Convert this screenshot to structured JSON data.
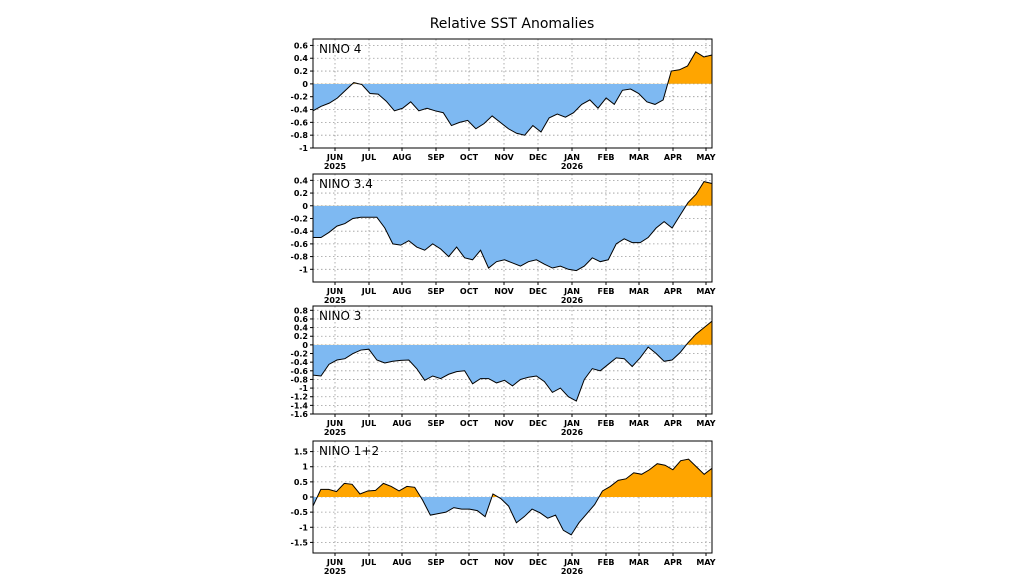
{
  "title": "Relative SST Anomalies",
  "colors": {
    "positive": "#FFA500",
    "negative": "#7EB9F2",
    "line": "#000000",
    "grid": "#9a9a9a"
  },
  "chart_data": [
    {
      "type": "area",
      "label": "NINO 4",
      "ylim": [
        -1,
        0.7
      ],
      "yticks": [
        0.6,
        0.4,
        0.2,
        0,
        -0.2,
        -0.4,
        -0.6,
        -0.8,
        -1
      ],
      "xticks": [
        "JUN",
        "JUL",
        "AUG",
        "SEP",
        "OCT",
        "NOV",
        "DEC",
        "JAN",
        "FEB",
        "MAR",
        "APR",
        "MAY"
      ],
      "year_labels": [
        "2025",
        "2026"
      ],
      "values": [
        -0.42,
        -0.35,
        -0.3,
        -0.22,
        -0.1,
        0.02,
        -0.01,
        -0.15,
        -0.16,
        -0.27,
        -0.42,
        -0.38,
        -0.28,
        -0.42,
        -0.38,
        -0.42,
        -0.45,
        -0.65,
        -0.6,
        -0.57,
        -0.7,
        -0.62,
        -0.5,
        -0.6,
        -0.7,
        -0.77,
        -0.8,
        -0.65,
        -0.75,
        -0.53,
        -0.47,
        -0.52,
        -0.45,
        -0.32,
        -0.25,
        -0.38,
        -0.22,
        -0.32,
        -0.1,
        -0.08,
        -0.15,
        -0.28,
        -0.32,
        -0.25,
        0.2,
        0.22,
        0.28,
        0.5,
        0.42,
        0.45
      ]
    },
    {
      "type": "area",
      "label": "NINO 3.4",
      "ylim": [
        -1.2,
        0.5
      ],
      "yticks": [
        0.4,
        0.2,
        0,
        -0.2,
        -0.4,
        -0.6,
        -0.8,
        -1
      ],
      "xticks": [
        "JUN",
        "JUL",
        "AUG",
        "SEP",
        "OCT",
        "NOV",
        "DEC",
        "JAN",
        "FEB",
        "MAR",
        "APR",
        "MAY"
      ],
      "year_labels": [
        "2025",
        "2026"
      ],
      "values": [
        -0.5,
        -0.5,
        -0.42,
        -0.32,
        -0.28,
        -0.2,
        -0.18,
        -0.18,
        -0.18,
        -0.35,
        -0.6,
        -0.62,
        -0.55,
        -0.65,
        -0.7,
        -0.6,
        -0.68,
        -0.8,
        -0.65,
        -0.82,
        -0.85,
        -0.7,
        -0.98,
        -0.88,
        -0.85,
        -0.9,
        -0.95,
        -0.88,
        -0.85,
        -0.92,
        -0.98,
        -0.95,
        -1.0,
        -1.02,
        -0.95,
        -0.82,
        -0.88,
        -0.85,
        -0.6,
        -0.52,
        -0.58,
        -0.58,
        -0.5,
        -0.35,
        -0.25,
        -0.35,
        -0.15,
        0.05,
        0.18,
        0.38,
        0.35
      ]
    },
    {
      "type": "area",
      "label": "NINO 3",
      "ylim": [
        -1.6,
        0.9
      ],
      "yticks": [
        0.8,
        0.6,
        0.4,
        0.2,
        0,
        -0.2,
        -0.4,
        -0.6,
        -0.8,
        -1,
        -1.2,
        -1.4,
        -1.6
      ],
      "xticks": [
        "JUN",
        "JUL",
        "AUG",
        "SEP",
        "OCT",
        "NOV",
        "DEC",
        "JAN",
        "FEB",
        "MAR",
        "APR",
        "MAY"
      ],
      "year_labels": [
        "2025",
        "2026"
      ],
      "values": [
        -0.7,
        -0.72,
        -0.45,
        -0.35,
        -0.32,
        -0.2,
        -0.12,
        -0.1,
        -0.35,
        -0.42,
        -0.38,
        -0.36,
        -0.35,
        -0.55,
        -0.82,
        -0.72,
        -0.78,
        -0.68,
        -0.62,
        -0.6,
        -0.9,
        -0.78,
        -0.78,
        -0.88,
        -0.82,
        -0.95,
        -0.8,
        -0.75,
        -0.72,
        -0.85,
        -1.1,
        -1.0,
        -1.2,
        -1.3,
        -0.8,
        -0.55,
        -0.6,
        -0.45,
        -0.3,
        -0.32,
        -0.5,
        -0.3,
        -0.05,
        -0.2,
        -0.38,
        -0.35,
        -0.18,
        0.05,
        0.25,
        0.4,
        0.55
      ]
    },
    {
      "type": "area",
      "label": "NINO 1+2",
      "ylim": [
        -1.85,
        1.85
      ],
      "yticks": [
        1.5,
        1,
        0.5,
        0,
        -0.5,
        -1,
        -1.5
      ],
      "xticks": [
        "JUN",
        "JUL",
        "AUG",
        "SEP",
        "OCT",
        "NOV",
        "DEC",
        "JAN",
        "FEB",
        "MAR",
        "APR",
        "MAY"
      ],
      "year_labels": [
        "2025",
        "2026"
      ],
      "values": [
        -0.3,
        0.25,
        0.25,
        0.18,
        0.45,
        0.42,
        0.1,
        0.2,
        0.22,
        0.45,
        0.35,
        0.2,
        0.35,
        0.32,
        -0.1,
        -0.6,
        -0.55,
        -0.5,
        -0.35,
        -0.4,
        -0.4,
        -0.45,
        -0.65,
        0.1,
        -0.05,
        -0.3,
        -0.85,
        -0.65,
        -0.4,
        -0.52,
        -0.7,
        -0.6,
        -1.1,
        -1.25,
        -0.85,
        -0.55,
        -0.25,
        0.2,
        0.35,
        0.55,
        0.6,
        0.8,
        0.75,
        0.9,
        1.1,
        1.05,
        0.9,
        1.2,
        1.25,
        1.0,
        0.75,
        0.95
      ]
    }
  ]
}
